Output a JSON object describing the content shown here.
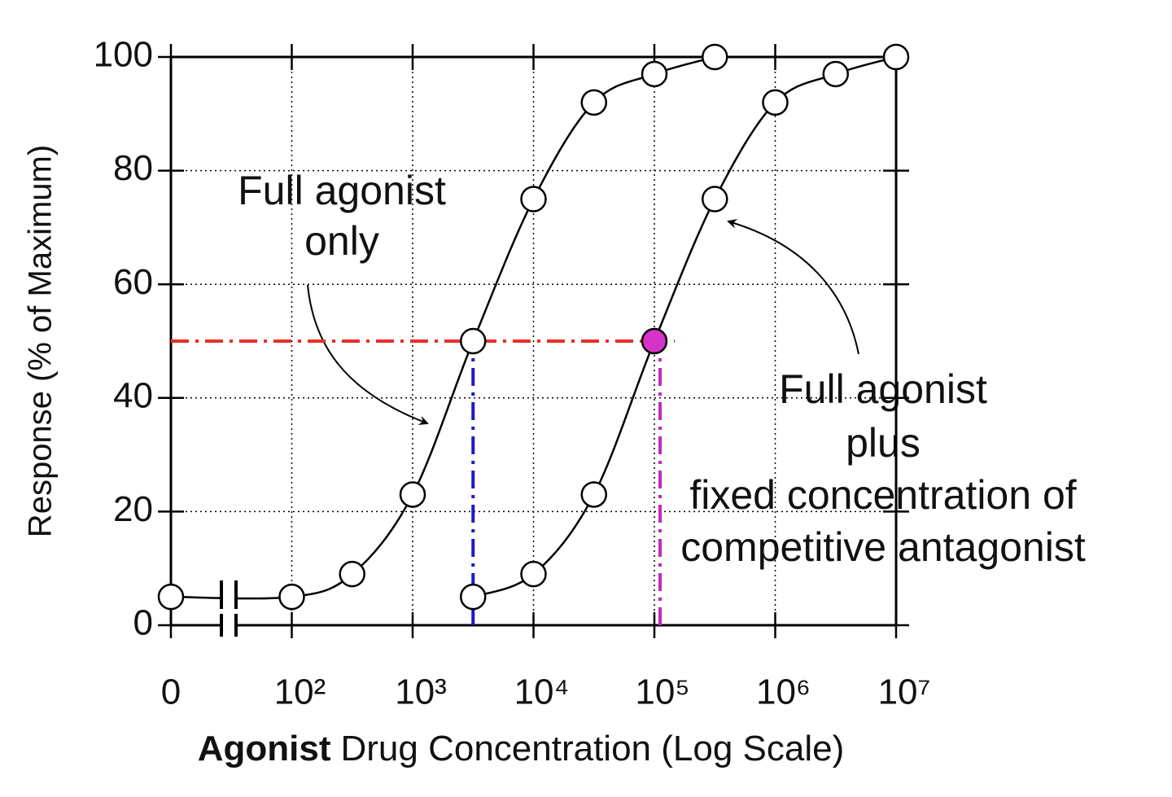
{
  "chart_data": {
    "type": "line",
    "ylabel": "Response (% of Maximum)",
    "xlabel_bold": "Agonist",
    "xlabel": "Drug Concentration (Log Scale)",
    "xscale": "log",
    "axis_break": true,
    "xlim": [
      10,
      10000000
    ],
    "xticks": [
      0,
      {
        "value": 100,
        "label": "10²"
      },
      {
        "value": 1000,
        "label": "10³"
      },
      {
        "value": 10000,
        "label": "10⁴"
      },
      {
        "value": 100000,
        "label": "10⁵"
      },
      {
        "value": 1000000,
        "label": "10⁶"
      },
      {
        "value": 10000000,
        "label": "10⁷"
      }
    ],
    "ylim": [
      0,
      100
    ],
    "yticks": [
      0,
      20,
      40,
      60,
      80,
      100
    ],
    "grid": true,
    "series": [
      {
        "color": "#000000",
        "marker_fill": "#ffffff",
        "x": [
          0,
          100,
          316,
          1000,
          3162,
          10000,
          31623,
          100000,
          316228
        ],
        "values": [
          5,
          5,
          9,
          23,
          50,
          75,
          92,
          97,
          100
        ]
      },
      {
        "color": "#000000",
        "marker_fill": "#ffffff",
        "highlight_index": 3,
        "highlight_color": "#d633c8",
        "x": [
          3162,
          10000,
          31623,
          100000,
          316228,
          1000000,
          3162278,
          10000000
        ],
        "values": [
          5,
          9,
          23,
          50,
          75,
          92,
          97,
          100
        ]
      }
    ],
    "ref_lines": [
      {
        "y": 50,
        "x": [
          0,
          100000
        ],
        "color": "#e8302a"
      },
      {
        "x": 3162,
        "y": [
          0,
          50
        ],
        "color": "#1a1acc"
      },
      {
        "x": 100000,
        "y": [
          0,
          50
        ],
        "color": "#c02ac0"
      }
    ],
    "annotations": [
      {
        "text": [
          "Full agonist",
          "only"
        ]
      },
      {
        "text": [
          "Full agonist",
          "plus",
          "fixed concentration of",
          "competitive antagonist"
        ]
      }
    ]
  }
}
